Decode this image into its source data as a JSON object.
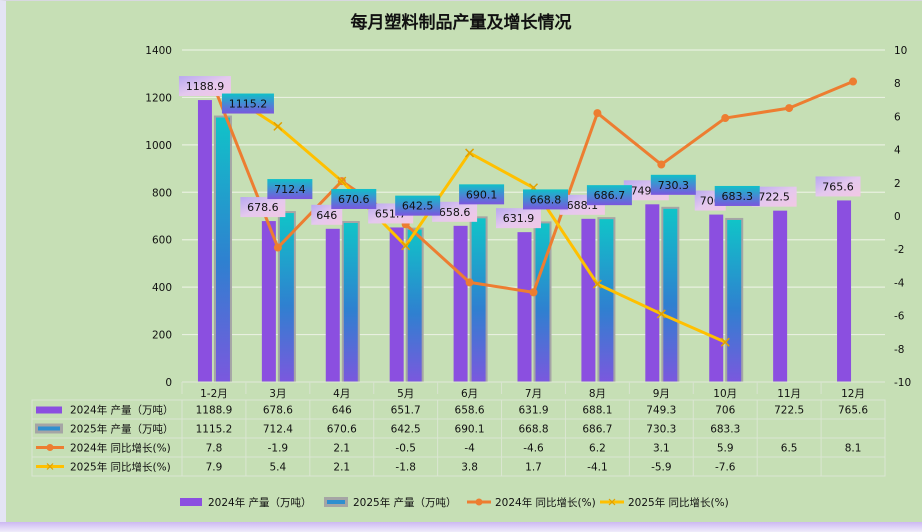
{
  "chart_data": {
    "type": "bar",
    "title": "每月塑料制品产量及增长情况",
    "categories": [
      "1-2月",
      "3月",
      "4月",
      "5月",
      "6月",
      "7月",
      "8月",
      "9月",
      "10月",
      "11月",
      "12月"
    ],
    "y_left": {
      "range": [
        0,
        1400
      ],
      "ticks": [
        "0",
        "200",
        "400",
        "600",
        "800",
        "1000",
        "1200",
        "1400"
      ]
    },
    "y_right": {
      "range": [
        -10,
        10
      ],
      "ticks": [
        "-10",
        "-8",
        "-6",
        "-4",
        "-2",
        "0",
        "2",
        "4",
        "6",
        "8",
        "10"
      ]
    },
    "grid": true,
    "legend_position": "bottom",
    "series": [
      {
        "name": "2024年 产量（万吨）",
        "type": "bar",
        "axis": "left",
        "color": "#8b4fe0",
        "values": [
          1188.9,
          678.6,
          646,
          651.7,
          658.6,
          631.9,
          688.1,
          749.3,
          706,
          722.5,
          765.6
        ],
        "labels": [
          "1188.9",
          "678.6",
          "646",
          "651.7",
          "658.6",
          "631.9",
          "688.1",
          "749.3",
          "706",
          "722.5",
          "765.6"
        ]
      },
      {
        "name": "2025年 产量（万吨）",
        "type": "bar",
        "axis": "left",
        "color": "#2f8fcf",
        "values": [
          1115.2,
          712.4,
          670.6,
          642.5,
          690.1,
          668.8,
          686.7,
          730.3,
          683.3,
          null,
          null
        ],
        "labels": [
          "1115.2",
          "712.4",
          "670.6",
          "642.5",
          "690.1",
          "668.8",
          "686.7",
          "730.3",
          "683.3",
          "",
          ""
        ]
      },
      {
        "name": "2024年 同比增长(%)",
        "type": "line",
        "axis": "right",
        "color": "#ed7d31",
        "marker": "circle",
        "values": [
          7.8,
          -1.9,
          2.1,
          -0.5,
          -4,
          -4.6,
          6.2,
          3.1,
          5.9,
          6.5,
          8.1
        ],
        "labels": [
          "7.8",
          "-1.9",
          "2.1",
          "-0.5",
          "-4",
          "-4.6",
          "6.2",
          "3.1",
          "5.9",
          "6.5",
          "8.1"
        ]
      },
      {
        "name": "2025年 同比增长(%)",
        "type": "line",
        "axis": "right",
        "color": "#ffc000",
        "marker": "x",
        "values": [
          7.9,
          5.4,
          2.1,
          -1.8,
          3.8,
          1.7,
          -4.1,
          -5.9,
          -7.6,
          null,
          null
        ],
        "labels": [
          "7.9",
          "5.4",
          "2.1",
          "-1.8",
          "3.8",
          "1.7",
          "-4.1",
          "-5.9",
          "-7.6",
          "",
          ""
        ]
      }
    ]
  }
}
